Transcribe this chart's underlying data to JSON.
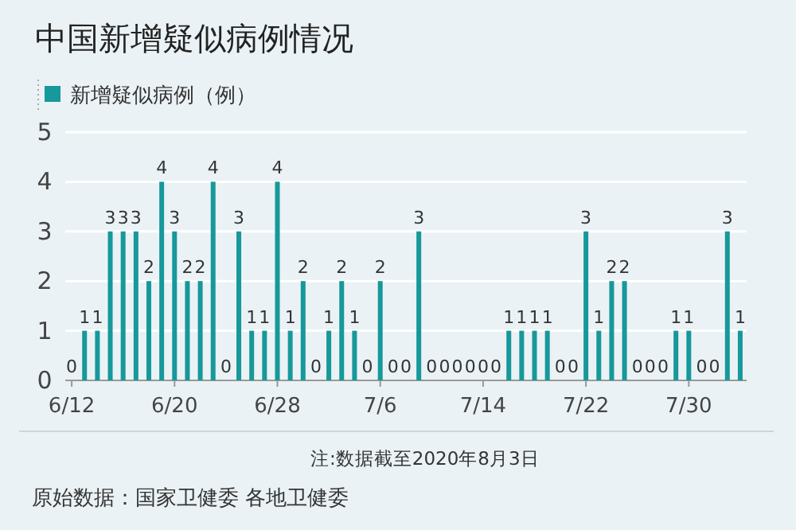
{
  "chart_data": {
    "type": "bar",
    "title": "中国新增疑似病例情况",
    "series": [
      {
        "name": "新增疑似病例（例）",
        "color": "#17989a",
        "values": [
          0,
          1,
          1,
          3,
          3,
          3,
          2,
          4,
          3,
          2,
          2,
          4,
          0,
          3,
          1,
          1,
          4,
          1,
          2,
          0,
          1,
          2,
          1,
          0,
          2,
          0,
          0,
          3,
          0,
          0,
          0,
          0,
          0,
          0,
          1,
          1,
          1,
          1,
          0,
          0,
          3,
          1,
          2,
          2,
          0,
          0,
          0,
          1,
          1,
          0,
          0,
          3,
          1
        ]
      }
    ],
    "categories": [
      "6/12",
      null,
      null,
      null,
      null,
      null,
      null,
      null,
      "6/20",
      null,
      null,
      null,
      null,
      null,
      null,
      null,
      "6/28",
      null,
      null,
      null,
      null,
      null,
      null,
      null,
      "7/6",
      null,
      null,
      null,
      null,
      null,
      null,
      null,
      "7/14",
      null,
      null,
      null,
      null,
      null,
      null,
      null,
      "7/22",
      null,
      null,
      null,
      null,
      null,
      null,
      null,
      "7/30",
      null,
      null,
      null,
      null
    ],
    "ylim": [
      0,
      5
    ],
    "yticks": [
      0,
      1,
      2,
      3,
      4,
      5
    ],
    "grid": "y",
    "legend": "top left",
    "data_labels": true,
    "annotations": [
      "注:数据截至2020年8月3日",
      "原始数据：国家卫健委 各地卫健委"
    ]
  }
}
